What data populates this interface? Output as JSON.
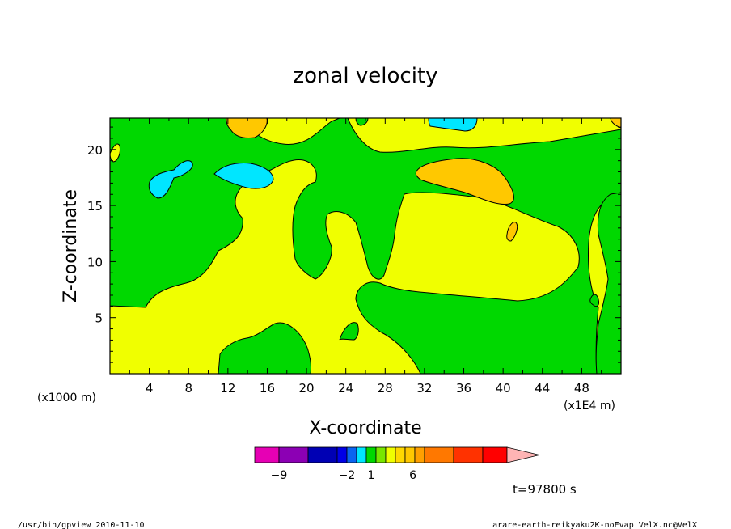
{
  "chart_data": {
    "type": "heatmap",
    "title": "zonal velocity",
    "xlabel": "X-coordinate",
    "ylabel": "Z-coordinate",
    "x_unit_left": "(x1000 m)",
    "x_unit_right": "(x1E4 m)",
    "xlim": [
      0,
      52
    ],
    "ylim": [
      0,
      22.8
    ],
    "x_ticks": [
      "4",
      "8",
      "12",
      "16",
      "20",
      "24",
      "28",
      "32",
      "36",
      "40",
      "44",
      "48"
    ],
    "y_ticks": [
      "5",
      "10",
      "15",
      "20"
    ],
    "colorbar": {
      "colors": [
        "#e600b4",
        "#8c00b4",
        "#0000b4",
        "#0000e6",
        "#0a64f0",
        "#00e6ff",
        "#00d800",
        "#78e600",
        "#f0ff00",
        "#ffd800",
        "#ffc800",
        "#ffa000",
        "#ff7800",
        "#ff3200",
        "#ff0000",
        "#f08080",
        "#ffb4b4"
      ],
      "labels": [
        {
          "text": "−9",
          "index": 1
        },
        {
          "text": "−2",
          "index": 4
        },
        {
          "text": "1",
          "index": 6.5
        },
        {
          "text": "6",
          "index": 10.8
        }
      ]
    },
    "time_label": "t=97800 s"
  },
  "footer": {
    "left": "/usr/bin/gpview 2010-11-10",
    "right": "arare-earth-reikyaku2K-noEvap_VelX.nc@VelX"
  }
}
